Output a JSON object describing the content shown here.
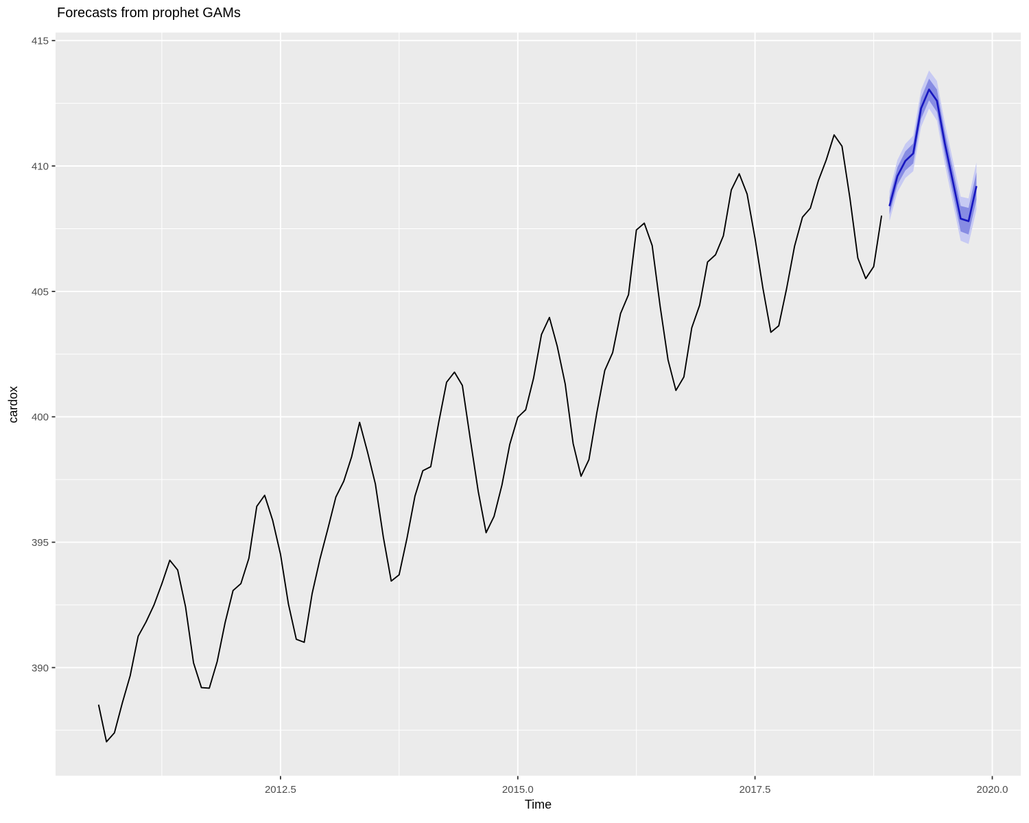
{
  "chart_data": {
    "type": "line",
    "title": "Forecasts from prophet GAMs",
    "xlabel": "Time",
    "ylabel": "cardox",
    "xlim": [
      2010.13,
      2020.3
    ],
    "ylim": [
      385.69,
      415.32
    ],
    "grid": "on",
    "legend": "none",
    "x_ticks": {
      "values": [
        2012.5,
        2015.0,
        2017.5,
        2020.0
      ],
      "labels": [
        "2012.5",
        "2015.0",
        "2017.5",
        "2020.0"
      ]
    },
    "x_minor_ticks": [
      2011.25,
      2013.75,
      2016.25,
      2018.75
    ],
    "y_ticks": {
      "values": [
        390,
        395,
        400,
        405,
        410,
        415
      ],
      "labels": [
        "390",
        "395",
        "400",
        "405",
        "410",
        "415"
      ]
    },
    "y_minor_ticks": [
      387.5,
      392.5,
      397.5,
      402.5,
      407.5,
      412.5
    ],
    "series": [
      {
        "name": "observed",
        "type": "line",
        "color": "#000000",
        "start_year_decimal": 2010.5833,
        "step_years": 0.0833333,
        "values": [
          388.52,
          387.04,
          387.4,
          388.59,
          389.68,
          391.25,
          391.82,
          392.49,
          393.34,
          394.28,
          393.89,
          392.42,
          390.19,
          389.2,
          389.18,
          390.24,
          391.8,
          393.07,
          393.35,
          394.36,
          396.43,
          396.87,
          395.88,
          394.52,
          392.54,
          391.13,
          391.01,
          392.95,
          394.34,
          395.55,
          396.8,
          397.43,
          398.41,
          399.78,
          398.6,
          397.32,
          395.2,
          393.45,
          393.7,
          395.16,
          396.84,
          397.85,
          398.01,
          399.77,
          401.38,
          401.78,
          401.25,
          399.1,
          397.03,
          395.38,
          396.03,
          397.28,
          398.91,
          399.98,
          400.28,
          401.54,
          403.28,
          403.96,
          402.8,
          401.31,
          398.93,
          397.63,
          398.29,
          400.16,
          401.85,
          402.56,
          404.12,
          404.87,
          407.45,
          407.72,
          406.83,
          404.41,
          402.27,
          401.05,
          401.59,
          403.55,
          404.45,
          406.17,
          406.46,
          407.22,
          409.04,
          409.69,
          408.88,
          407.12,
          405.13,
          403.37,
          403.63,
          405.12,
          406.81,
          407.96,
          408.32,
          409.41,
          410.24,
          411.24,
          410.79,
          408.71,
          406.33,
          405.51,
          405.99,
          408.02
        ]
      },
      {
        "name": "forecast-median",
        "type": "line",
        "color": "#1717C0",
        "start_year_decimal": 2018.9167,
        "step_years": 0.0833333,
        "values": [
          408.4,
          409.6,
          410.2,
          410.5,
          412.3,
          413.05,
          412.6,
          410.9,
          409.4,
          407.9,
          407.8,
          409.2
        ],
        "bands": [
          {
            "level": "95%",
            "color": "#C7CAF3",
            "lower": [
              407.8,
              408.96,
              409.52,
              409.79,
              411.56,
              412.29,
              411.81,
              410.08,
              408.55,
              407.02,
              406.89,
              408.26
            ],
            "upper": [
              409.0,
              410.24,
              410.88,
              411.21,
              413.04,
              413.81,
              413.39,
              411.72,
              410.25,
              408.78,
              408.71,
              410.14
            ]
          },
          {
            "level": "80%",
            "color": "#878CE3",
            "lower": [
              408.07,
              409.25,
              409.82,
              410.1,
              411.88,
              412.62,
              412.15,
              410.43,
              408.91,
              407.39,
              407.27,
              408.65
            ],
            "upper": [
              408.73,
              409.95,
              410.58,
              410.9,
              412.72,
              413.48,
              413.05,
              411.37,
              409.89,
              408.41,
              408.33,
              409.75
            ]
          }
        ]
      }
    ],
    "colors": {
      "plot_background": "#FFFFFF",
      "panel_background": "#EBEBEB",
      "grid": "#FFFFFF",
      "axis_text": "#4D4D4D",
      "tick_marks": "#333333",
      "title_text": "#000000"
    }
  }
}
